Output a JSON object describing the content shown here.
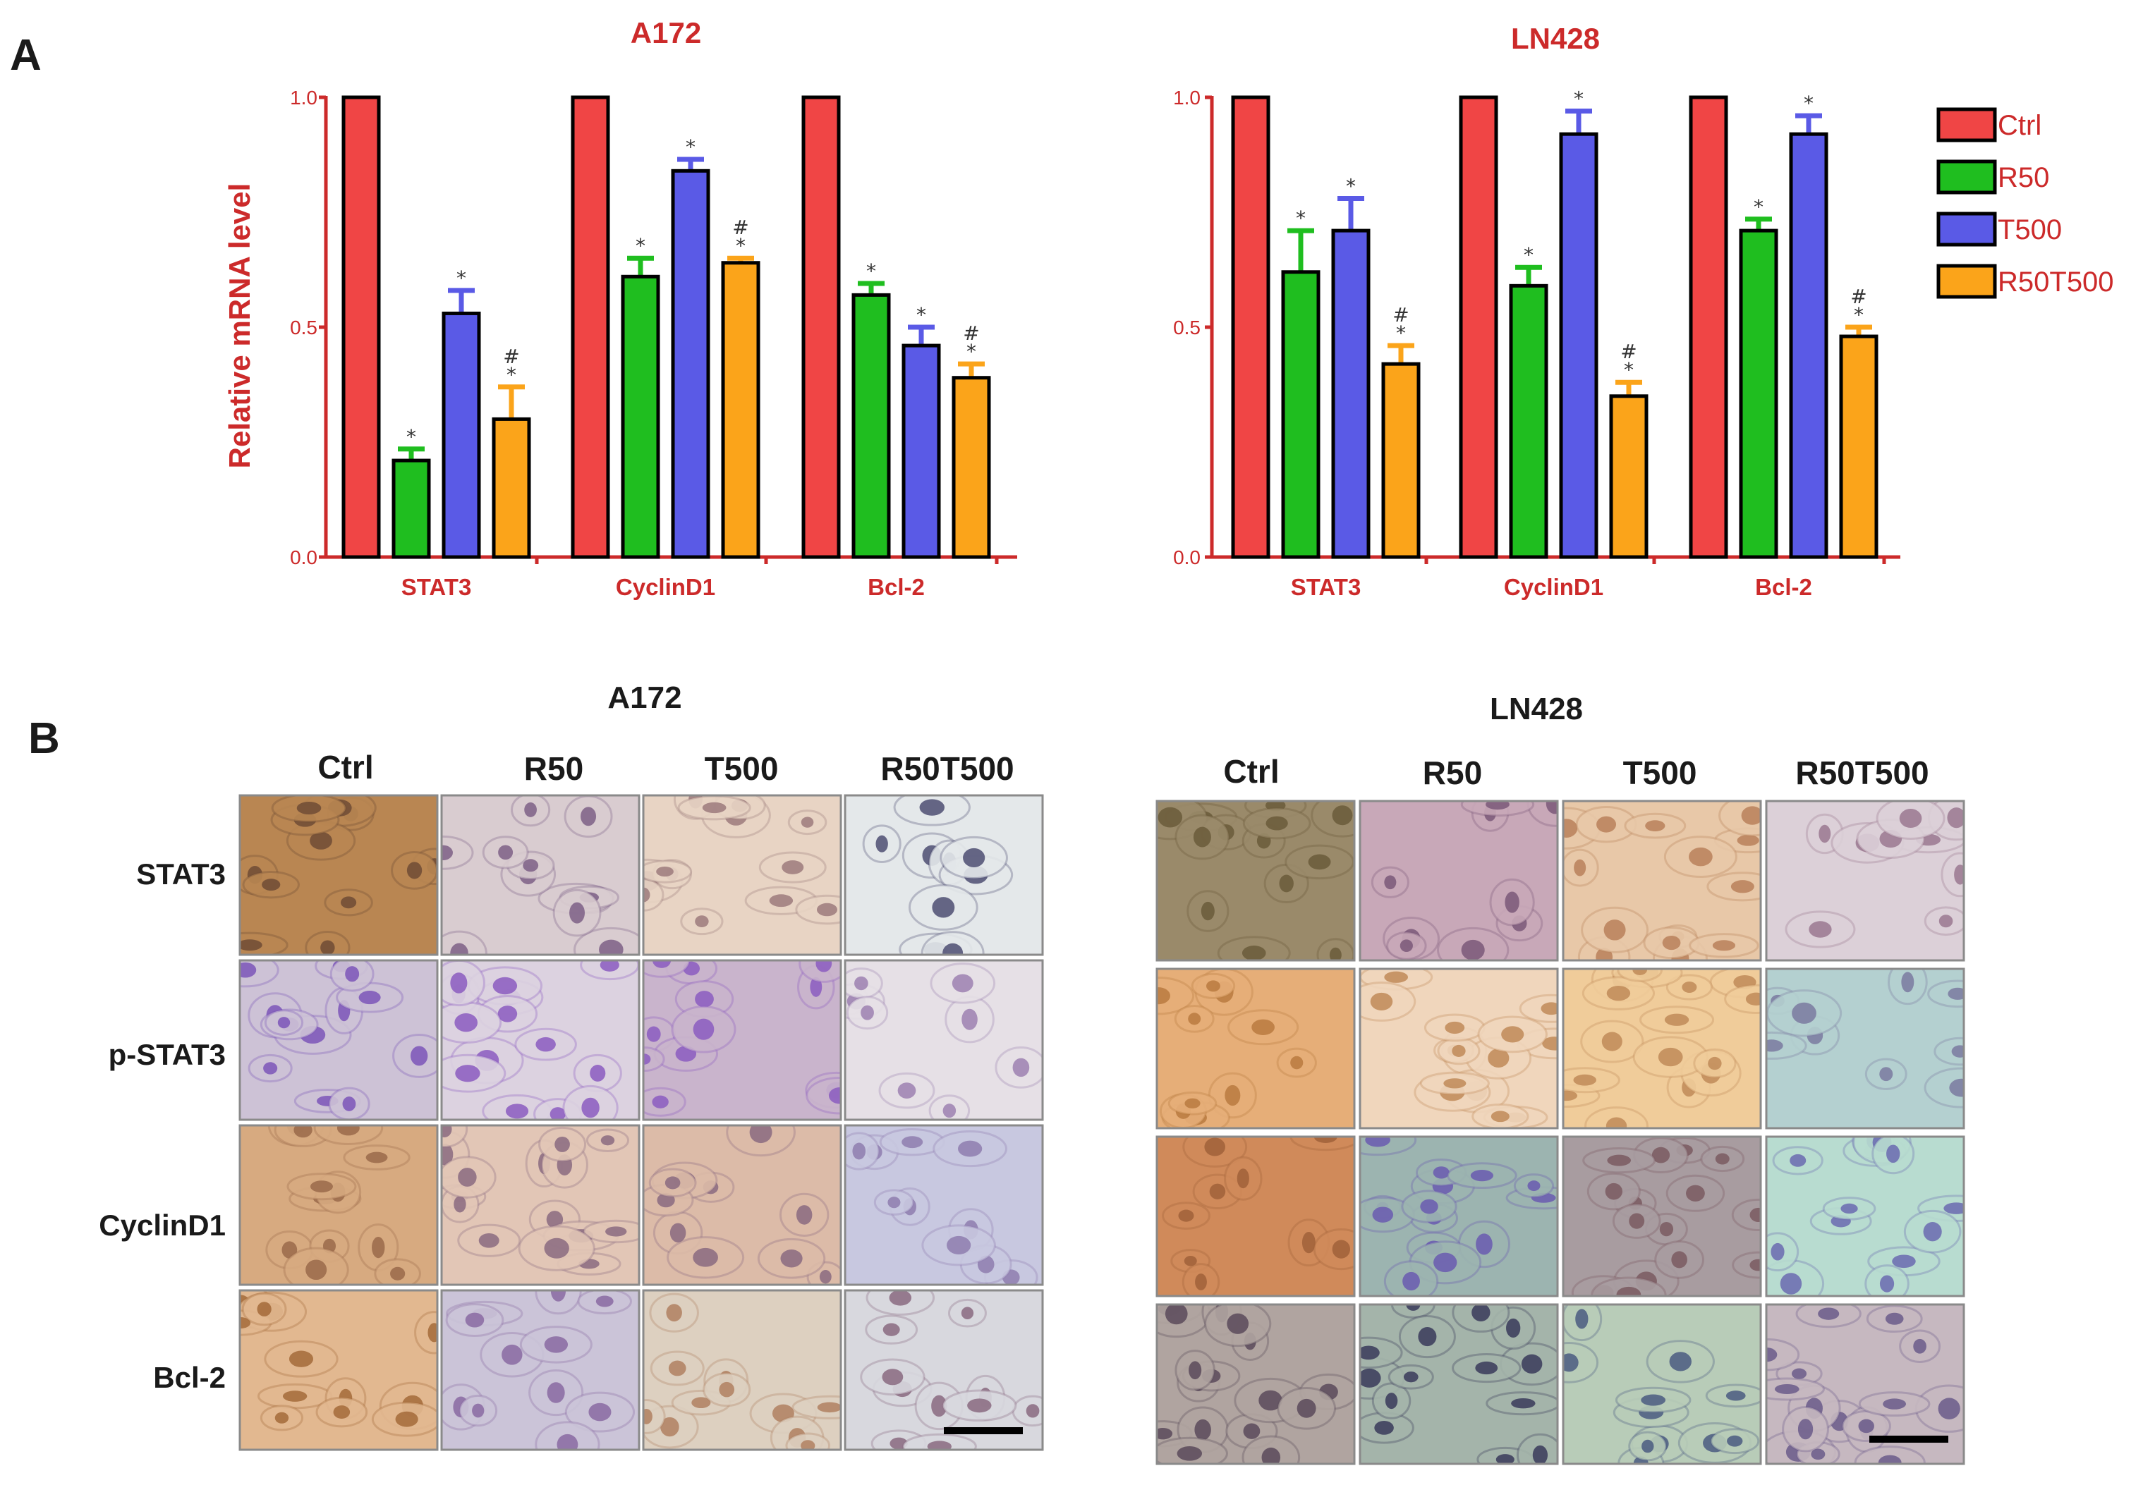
{
  "panel_a_label": "A",
  "panel_b_label": "B",
  "colors": {
    "axis": "#cc2a2a",
    "series": [
      "#f04545",
      "#1fbe1f",
      "#5a5ae6",
      "#fba41a"
    ],
    "err": [
      "#f04545",
      "#1fbe1f",
      "#5a5ae6",
      "#fba41a"
    ]
  },
  "chart_data": [
    {
      "type": "bar",
      "title": "A172",
      "ylabel": "Relative mRNA level",
      "xlabel": "",
      "ylim": [
        0,
        1.0
      ],
      "yticks": [
        0.0,
        0.5,
        1.0
      ],
      "ytick_labels": [
        "0.0",
        "0.5",
        "1.0"
      ],
      "categories": [
        "STAT3",
        "CyclinD1",
        "Bcl-2"
      ],
      "series": [
        {
          "name": "Ctrl",
          "values": [
            1.0,
            1.0,
            1.0
          ],
          "errors": [
            0,
            0,
            0
          ],
          "marks": [
            "",
            "",
            ""
          ]
        },
        {
          "name": "R50",
          "values": [
            0.21,
            0.61,
            0.57
          ],
          "errors": [
            0.025,
            0.04,
            0.025
          ],
          "marks": [
            "*",
            "*",
            "*"
          ]
        },
        {
          "name": "T500",
          "values": [
            0.53,
            0.84,
            0.46
          ],
          "errors": [
            0.05,
            0.025,
            0.04
          ],
          "marks": [
            "*",
            "*",
            "*"
          ]
        },
        {
          "name": "R50T500",
          "values": [
            0.3,
            0.64,
            0.39
          ],
          "errors": [
            0.07,
            0.01,
            0.03
          ],
          "marks": [
            "#\n*",
            "#\n*",
            "#\n*"
          ]
        }
      ]
    },
    {
      "type": "bar",
      "title": "LN428",
      "ylabel": "",
      "xlabel": "",
      "ylim": [
        0,
        1.0
      ],
      "yticks": [
        0.0,
        0.5,
        1.0
      ],
      "ytick_labels": [
        "0.0",
        "0.5",
        "1.0"
      ],
      "categories": [
        "STAT3",
        "CyclinD1",
        "Bcl-2"
      ],
      "series": [
        {
          "name": "Ctrl",
          "values": [
            1.0,
            1.0,
            1.0
          ],
          "errors": [
            0,
            0,
            0
          ],
          "marks": [
            "",
            "",
            ""
          ]
        },
        {
          "name": "R50",
          "values": [
            0.62,
            0.59,
            0.71
          ],
          "errors": [
            0.09,
            0.04,
            0.025
          ],
          "marks": [
            "*",
            "*",
            "*"
          ]
        },
        {
          "name": "T500",
          "values": [
            0.71,
            0.92,
            0.92
          ],
          "errors": [
            0.07,
            0.05,
            0.04
          ],
          "marks": [
            "*",
            "*",
            "*"
          ]
        },
        {
          "name": "R50T500",
          "values": [
            0.42,
            0.35,
            0.48
          ],
          "errors": [
            0.04,
            0.03,
            0.02
          ],
          "marks": [
            "#\n*",
            "#\n*",
            "#\n*"
          ]
        }
      ]
    }
  ],
  "legend": [
    "Ctrl",
    "R50",
    "T500",
    "R50T500"
  ],
  "micrographs": [
    {
      "title": "A172",
      "columns": [
        "Ctrl",
        "R50",
        "T500",
        "R50T500"
      ],
      "rows": [
        "STAT3",
        "p-STAT3",
        "CyclinD1",
        "Bcl-2"
      ],
      "tile_colors": [
        [
          "#b98652",
          "#d9ccd0",
          "#e8d4c4",
          "#e4e8ea"
        ],
        [
          "#cdc2d6",
          "#dcd2e0",
          "#c9b4cc",
          "#e6e0e6"
        ],
        [
          "#d7aa80",
          "#e2c6b6",
          "#dcbba8",
          "#c8c8e0"
        ],
        [
          "#e2b890",
          "#cbc4d8",
          "#ddd0c0",
          "#d8d8de"
        ]
      ],
      "nucleus_colors": [
        [
          "#6e4b35",
          "#7c5f86",
          "#9c7a7c",
          "#4e4e72"
        ],
        [
          "#7b55b8",
          "#8b5cc0",
          "#8b5cc0",
          "#9c80b0"
        ],
        [
          "#9a6a4a",
          "#8a6a80",
          "#8a6a80",
          "#8e7cae"
        ],
        [
          "#a36a3a",
          "#8a6aa2",
          "#b08060",
          "#8a6a80"
        ]
      ]
    },
    {
      "title": "LN428",
      "columns": [
        "Ctrl",
        "R50",
        "T500",
        "R50T500"
      ],
      "rows": [
        "STAT3",
        "p-STAT3",
        "CyclinD1",
        "Bcl-2"
      ],
      "tile_colors": [
        [
          "#9a8a6a",
          "#c8a8b8",
          "#e8c8a8",
          "#dcd0d8"
        ],
        [
          "#e6ae78",
          "#f0d6bc",
          "#f0cc9a",
          "#b4d0d0"
        ],
        [
          "#d08a5a",
          "#9cb4b0",
          "#a89ca0",
          "#b8dcd0"
        ],
        [
          "#b0a4a0",
          "#a4b4aa",
          "#b8ccb8",
          "#c6b8c0"
        ]
      ],
      "nucleus_colors": [
        [
          "#6a5a3a",
          "#7a5878",
          "#b8805a",
          "#9a7890"
        ],
        [
          "#b87a40",
          "#c08a58",
          "#c08a58",
          "#7a7aa0"
        ],
        [
          "#a0603a",
          "#6a5ab0",
          "#7a5a60",
          "#6a6ab0"
        ],
        [
          "#5a4a5a",
          "#3a3a5a",
          "#4a5a80",
          "#6a5a8a"
        ]
      ]
    }
  ]
}
